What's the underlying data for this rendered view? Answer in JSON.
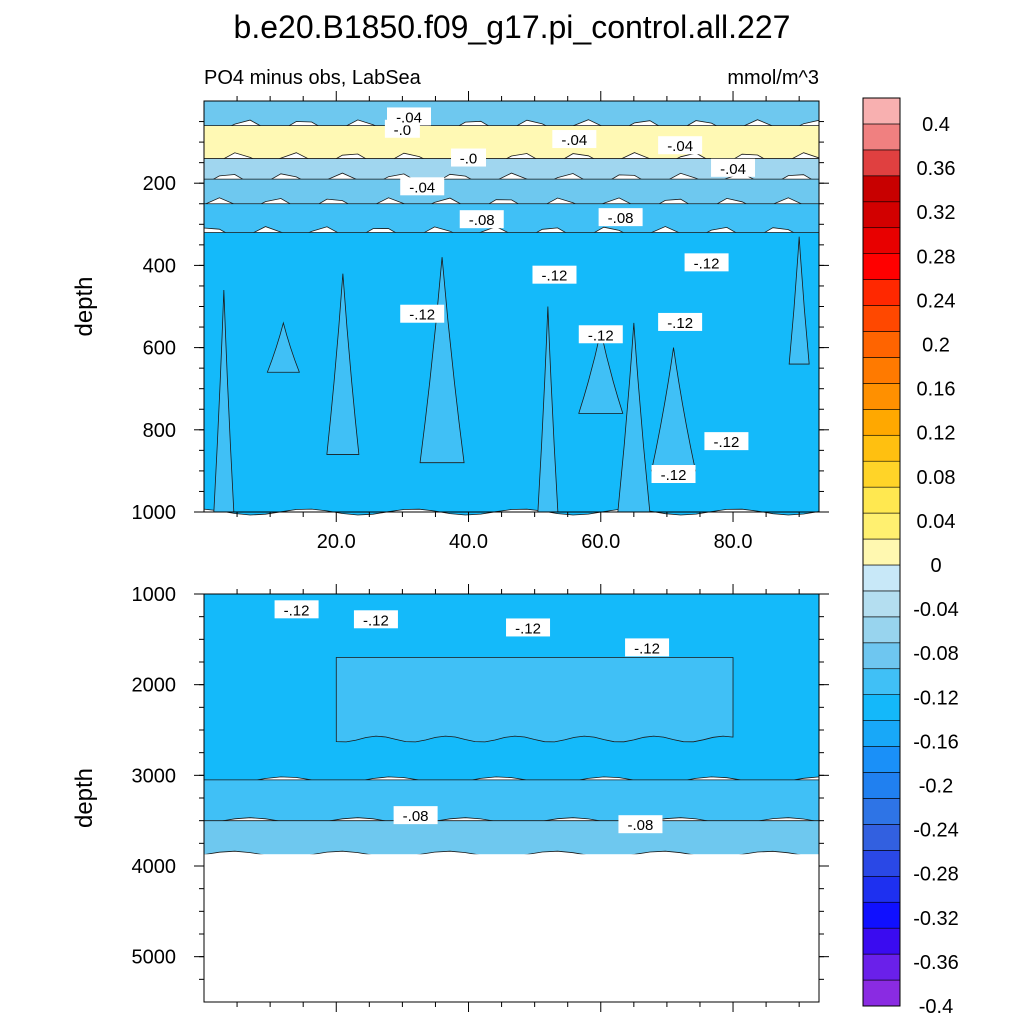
{
  "title": "b.e20.B1850.f09_g17.pi_control.all.227",
  "subtitle_left": "PO4 minus obs, LabSea",
  "units": "mmol/m^3",
  "palette": [
    "#8a2be2",
    "#6a20ea",
    "#3a0bf0",
    "#1010ff",
    "#1e30f0",
    "#2a48e6",
    "#3260e0",
    "#2e74e6",
    "#2080f0",
    "#1a90f8",
    "#18a8f8",
    "#14b8fa",
    "#40c0f6",
    "#6ec6f0",
    "#98d4ee",
    "#b4def0",
    "#c8e8f8",
    "#fff8b0",
    "#fff070",
    "#ffe850",
    "#ffd428",
    "#ffc010",
    "#ffa800",
    "#ff9000",
    "#ff7a00",
    "#ff6400",
    "#ff4800",
    "#ff2800",
    "#ff0000",
    "#e80000",
    "#d20000",
    "#c80000",
    "#e04040",
    "#f08080",
    "#f8b0b0"
  ],
  "chart_data": {
    "type": "heatmap",
    "title": "b.e20.B1850.f09_g17.pi_control.all.227",
    "colorbar": {
      "levels": [
        -0.4,
        -0.36,
        -0.32,
        -0.28,
        -0.24,
        -0.2,
        -0.16,
        -0.12,
        -0.08,
        -0.04,
        0,
        0.04,
        0.08,
        0.12,
        0.16,
        0.2,
        0.24,
        0.28,
        0.32,
        0.36,
        0.4
      ],
      "tick_labels": [
        "-0.4",
        "-0.36",
        "-0.32",
        "-0.28",
        "-0.24",
        "-0.2",
        "-0.16",
        "-0.12",
        "-0.08",
        "-0.04",
        "0",
        "0.04",
        "0.08",
        "0.12",
        "0.16",
        "0.2",
        "0.24",
        "0.28",
        "0.32",
        "0.36",
        "0.4"
      ]
    },
    "panels": [
      {
        "name": "upper",
        "ylabel": "depth",
        "xlim": [
          0,
          93
        ],
        "ylim": [
          0,
          1000
        ],
        "yreversed": true,
        "xticks": [
          20,
          40,
          60,
          80
        ],
        "xtick_labels": [
          "20.0",
          "40.0",
          "60.0",
          "80.0"
        ],
        "yticks": [
          200,
          400,
          600,
          800,
          1000
        ],
        "ytick_labels": [
          "200",
          "400",
          "600",
          "800",
          "1000"
        ],
        "layers": [
          {
            "depth_from": 0,
            "depth_to": 60,
            "value": -0.06
          },
          {
            "depth_from": 60,
            "depth_to": 140,
            "value": 0.02
          },
          {
            "depth_from": 140,
            "depth_to": 190,
            "value": -0.02
          },
          {
            "depth_from": 190,
            "depth_to": 250,
            "value": -0.05
          },
          {
            "depth_from": 250,
            "depth_to": 320,
            "value": -0.09
          },
          {
            "depth_from": 320,
            "depth_to": 1000,
            "value": -0.13
          }
        ],
        "contour_labels": [
          {
            "x": 30,
            "depth": 70,
            "text": "-.0"
          },
          {
            "x": 31,
            "depth": 40,
            "text": "-.04"
          },
          {
            "x": 40,
            "depth": 140,
            "text": "-.0"
          },
          {
            "x": 56,
            "depth": 95,
            "text": "-.04"
          },
          {
            "x": 72,
            "depth": 110,
            "text": "-.04"
          },
          {
            "x": 80,
            "depth": 165,
            "text": "-.04"
          },
          {
            "x": 33,
            "depth": 210,
            "text": "-.04"
          },
          {
            "x": 42,
            "depth": 290,
            "text": "-.08"
          },
          {
            "x": 63,
            "depth": 285,
            "text": "-.08"
          },
          {
            "x": 53,
            "depth": 425,
            "text": "-.12"
          },
          {
            "x": 76,
            "depth": 395,
            "text": "-.12"
          },
          {
            "x": 33,
            "depth": 520,
            "text": "-.12"
          },
          {
            "x": 60,
            "depth": 570,
            "text": "-.12"
          },
          {
            "x": 72,
            "depth": 540,
            "text": "-.12"
          },
          {
            "x": 79,
            "depth": 830,
            "text": "-.12"
          },
          {
            "x": 71,
            "depth": 910,
            "text": "-.12"
          }
        ]
      },
      {
        "name": "lower",
        "ylabel": "depth",
        "xlim": [
          0,
          93
        ],
        "ylim": [
          1000,
          5500
        ],
        "yreversed": true,
        "xticks": [
          20,
          40,
          60,
          80
        ],
        "yticks": [
          1000,
          2000,
          3000,
          4000,
          5000
        ],
        "ytick_labels": [
          "1000",
          "2000",
          "3000",
          "4000",
          "5000"
        ],
        "data_bottom": 3870,
        "layers": [
          {
            "depth_from": 1000,
            "depth_to": 3050,
            "value": -0.13
          },
          {
            "depth_from": 1700,
            "depth_to": 2600,
            "value": -0.1,
            "x_from": 20,
            "x_to": 80
          },
          {
            "depth_from": 3050,
            "depth_to": 3500,
            "value": -0.1
          },
          {
            "depth_from": 3500,
            "depth_to": 3870,
            "value": -0.07
          }
        ],
        "contour_labels": [
          {
            "x": 14,
            "depth": 1180,
            "text": "-.12"
          },
          {
            "x": 26,
            "depth": 1290,
            "text": "-.12"
          },
          {
            "x": 49,
            "depth": 1380,
            "text": "-.12"
          },
          {
            "x": 67,
            "depth": 1600,
            "text": "-.12"
          },
          {
            "x": 32,
            "depth": 3450,
            "text": "-.08"
          },
          {
            "x": 66,
            "depth": 3550,
            "text": "-.08"
          }
        ]
      }
    ]
  }
}
